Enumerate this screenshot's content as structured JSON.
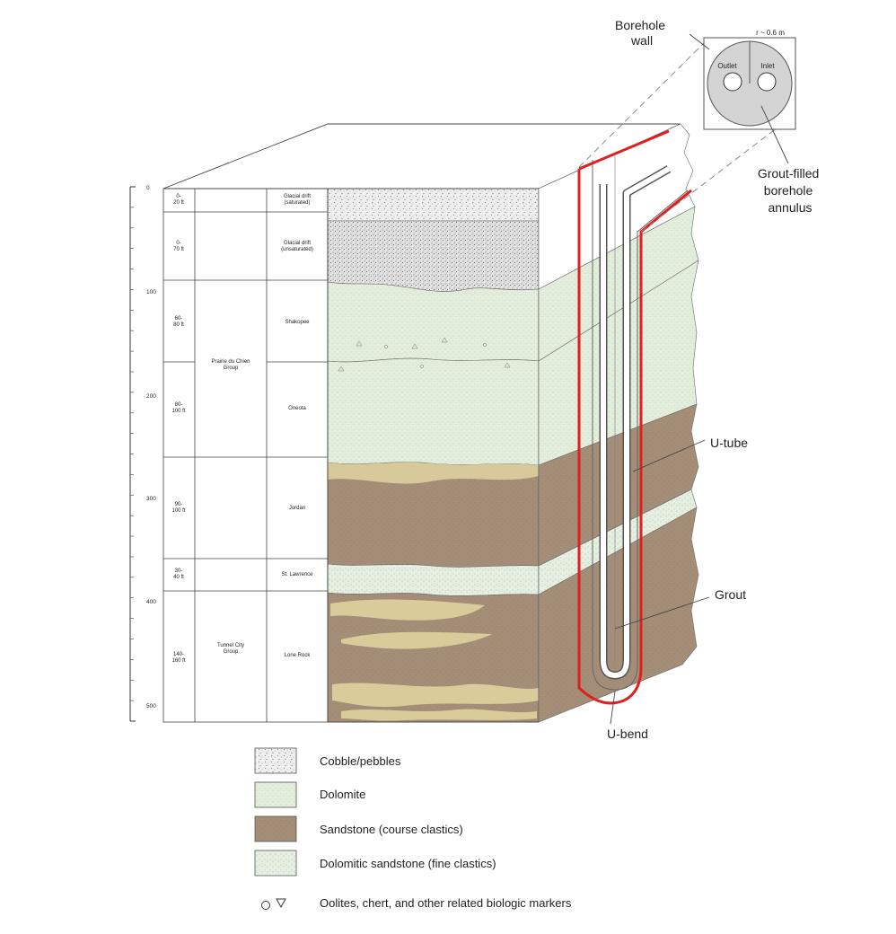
{
  "depth_axis": {
    "tick_labels": [
      "0",
      "100",
      "200",
      "300",
      "400",
      "500"
    ]
  },
  "strat_table": {
    "rows": [
      {
        "thickness": [
          "0-",
          "20 ft"
        ],
        "group": [],
        "formation": [
          "Glacial drift",
          "(saturated)"
        ]
      },
      {
        "thickness": [
          "0-",
          "70 ft"
        ],
        "group": [],
        "formation": [
          "Glacial drift",
          "(unsaturated)"
        ]
      },
      {
        "thickness": [
          "60-",
          "80 ft"
        ],
        "group": [],
        "formation": [
          "Shakopee"
        ]
      },
      {
        "thickness": [
          "80-",
          "100 ft"
        ],
        "group": [],
        "formation": [
          "Oneota"
        ]
      },
      {
        "thickness": [
          "90-",
          "100 ft"
        ],
        "group": [],
        "formation": [
          "Jordan"
        ]
      },
      {
        "thickness": [
          "30-",
          "40 ft"
        ],
        "group": [],
        "formation": [
          "St. Lawrence"
        ]
      },
      {
        "thickness": [
          "140-",
          "160 ft"
        ],
        "group": [],
        "formation": [
          "Lone Rock"
        ]
      }
    ],
    "groups": [
      {
        "lines": [
          "Prairie du Chien",
          "Group"
        ]
      },
      {
        "lines": [
          "Tunnel City",
          "Group"
        ]
      }
    ]
  },
  "callouts": {
    "borehole_wall": [
      "Borehole",
      "wall"
    ],
    "radius": "r ~ 0.6 m",
    "outlet": "Outlet",
    "inlet": "Inlet",
    "grout_annulus": [
      "Grout-filled",
      "borehole",
      "annulus"
    ],
    "u_tube": "U-tube",
    "grout": "Grout",
    "u_bend": "U-bend"
  },
  "legend": [
    {
      "label": "Cobble/pebbles",
      "pattern": "cobble"
    },
    {
      "label": "Dolomite",
      "pattern": "dolomite"
    },
    {
      "label": "Sandstone (course clastics)",
      "pattern": "sandstone"
    },
    {
      "label": "Dolomitic sandstone (fine clastics)",
      "pattern": "dolosand"
    },
    {
      "label": "Oolites, chert, and other related biologic markers",
      "pattern": "markers"
    }
  ],
  "colors": {
    "sandstone": "#a58f78",
    "sand_lens": "#d9cc9a",
    "dolomite": "#e3eedd",
    "cobble": "#ececec",
    "pipe": "#e0201f"
  }
}
